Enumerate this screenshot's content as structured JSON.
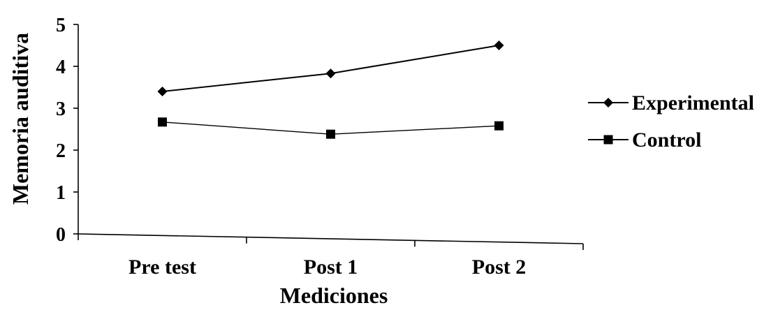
{
  "chart_data": {
    "type": "line",
    "title": "",
    "xlabel": "Mediciones",
    "ylabel": "Memoria auditiva",
    "categories": [
      "Pre test",
      "Post 1",
      "Post 2"
    ],
    "ylim": [
      0,
      5
    ],
    "yticks": [
      "0",
      "1",
      "2",
      "3",
      "4",
      "5"
    ],
    "grid": false,
    "legend": "right",
    "series": [
      {
        "name": "Experimental",
        "marker": "diamond",
        "color": "#000000",
        "values": [
          3.4,
          3.83,
          4.5
        ]
      },
      {
        "name": "Control",
        "marker": "square",
        "color": "#000000",
        "values": [
          2.67,
          2.38,
          2.58
        ]
      }
    ]
  }
}
